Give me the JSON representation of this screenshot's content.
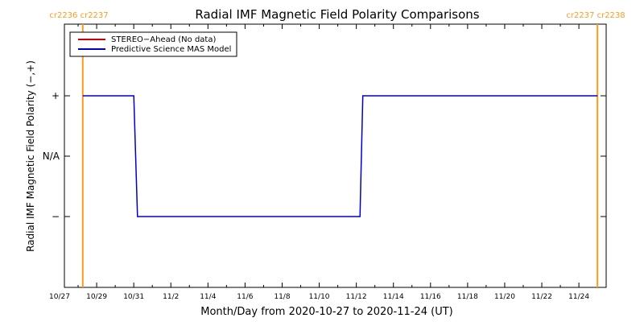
{
  "chart_data": {
    "type": "line",
    "title": "Radial IMF Magnetic Field Polarity Comparisons",
    "xlabel": "Month/Day from 2020-10-27 to 2020-11-24 (UT)",
    "ylabel": "Radial IMF Magnetic Field Polarity (−,+)",
    "x_tick_labels": [
      "10/27",
      "10/29",
      "10/31",
      "11/2",
      "11/4",
      "11/6",
      "11/8",
      "11/10",
      "11/12",
      "11/14",
      "11/16",
      "11/18",
      "11/20",
      "11/22",
      "11/24"
    ],
    "x_tick_days": [
      0,
      2,
      4,
      6,
      8,
      10,
      12,
      14,
      16,
      18,
      20,
      22,
      24,
      26,
      28
    ],
    "xlim_days": [
      0,
      28
    ],
    "y_tick_labels": [
      "+",
      "N/A",
      "−"
    ],
    "y_tick_values": [
      1,
      0,
      -1
    ],
    "ylim": [
      -2,
      2
    ],
    "carrington_markers": [
      {
        "day": 1.25,
        "label": "cr2236 cr2237",
        "color": "#ff9a1f"
      },
      {
        "day": 29.0,
        "label": "cr2237 cr2238",
        "color": "#ff9a1f"
      }
    ],
    "legend": {
      "placement": "top-left"
    },
    "series": [
      {
        "name": "STEREO−Ahead (No data)",
        "color": "#cc0000",
        "x": [],
        "y": []
      },
      {
        "name": "Predictive Science MAS Model",
        "color": "#0000cc",
        "x": [
          1.25,
          4.0,
          4.2,
          16.2,
          16.35,
          29.0
        ],
        "y": [
          1,
          1,
          -1,
          -1,
          1,
          1
        ]
      }
    ]
  }
}
